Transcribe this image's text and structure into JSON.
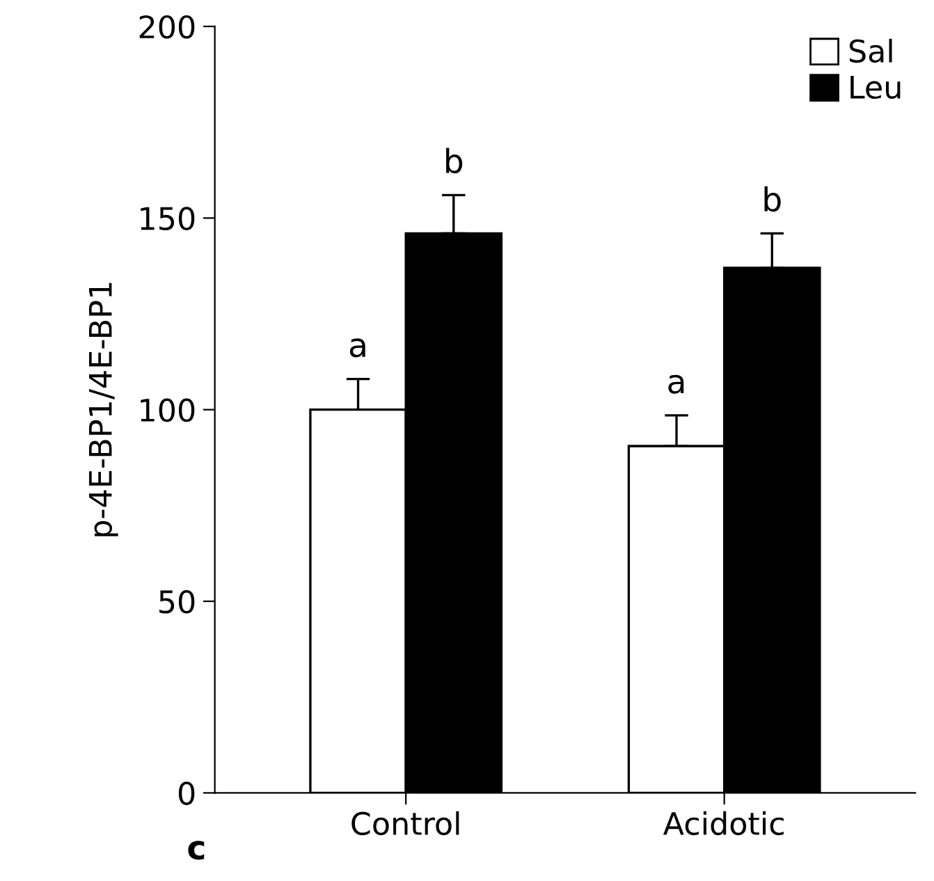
{
  "chart_data": {
    "type": "bar",
    "ylabel": "p-4E-BP1/4E-BP1",
    "categories": [
      "Control",
      "Acidotic"
    ],
    "series": [
      {
        "name": "Sal",
        "color": "#ffffff",
        "values": [
          100,
          90.5
        ],
        "errors": [
          8,
          8
        ],
        "value_labels": [
          "a",
          "a"
        ]
      },
      {
        "name": "Leu",
        "color": "#000000",
        "values": [
          146,
          137
        ],
        "errors": [
          10,
          9
        ],
        "value_labels": [
          "b",
          "b"
        ]
      }
    ],
    "ylim": [
      0,
      200
    ],
    "yticks": [
      0,
      50,
      100,
      150,
      200
    ],
    "grid": false,
    "legend": "top right",
    "annotations": [
      "c"
    ]
  }
}
